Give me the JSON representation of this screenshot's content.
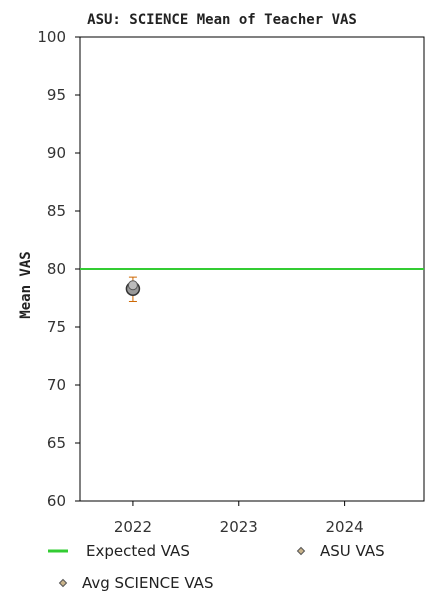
{
  "chart_data": {
    "type": "scatter",
    "title": "ASU: SCIENCE Mean of Teacher VAS",
    "xlabel": "",
    "ylabel": "Mean VAS",
    "ylim": [
      60,
      100
    ],
    "yticks": [
      60,
      65,
      70,
      75,
      80,
      85,
      90,
      95,
      100
    ],
    "xlim": [
      2021.5,
      2024.75
    ],
    "xticks": [
      2022,
      2023,
      2024
    ],
    "grid": false,
    "legend_position": "bottom",
    "series": [
      {
        "name": "Expected VAS",
        "kind": "reference-line",
        "y": 80,
        "color": "#33cc33"
      },
      {
        "name": "ASU VAS",
        "kind": "marker",
        "color": "#999999",
        "points": [
          {
            "x": 2022,
            "y": 78.3,
            "err_low": 77.2,
            "err_high": 79.3
          }
        ]
      },
      {
        "name": "Avg SCIENCE VAS",
        "kind": "marker",
        "color": "#bbbbbb",
        "points": [
          {
            "x": 2022,
            "y": 78.6
          }
        ]
      }
    ],
    "colors": {
      "error_bar": "#cc6600",
      "axis": "#000000"
    }
  }
}
